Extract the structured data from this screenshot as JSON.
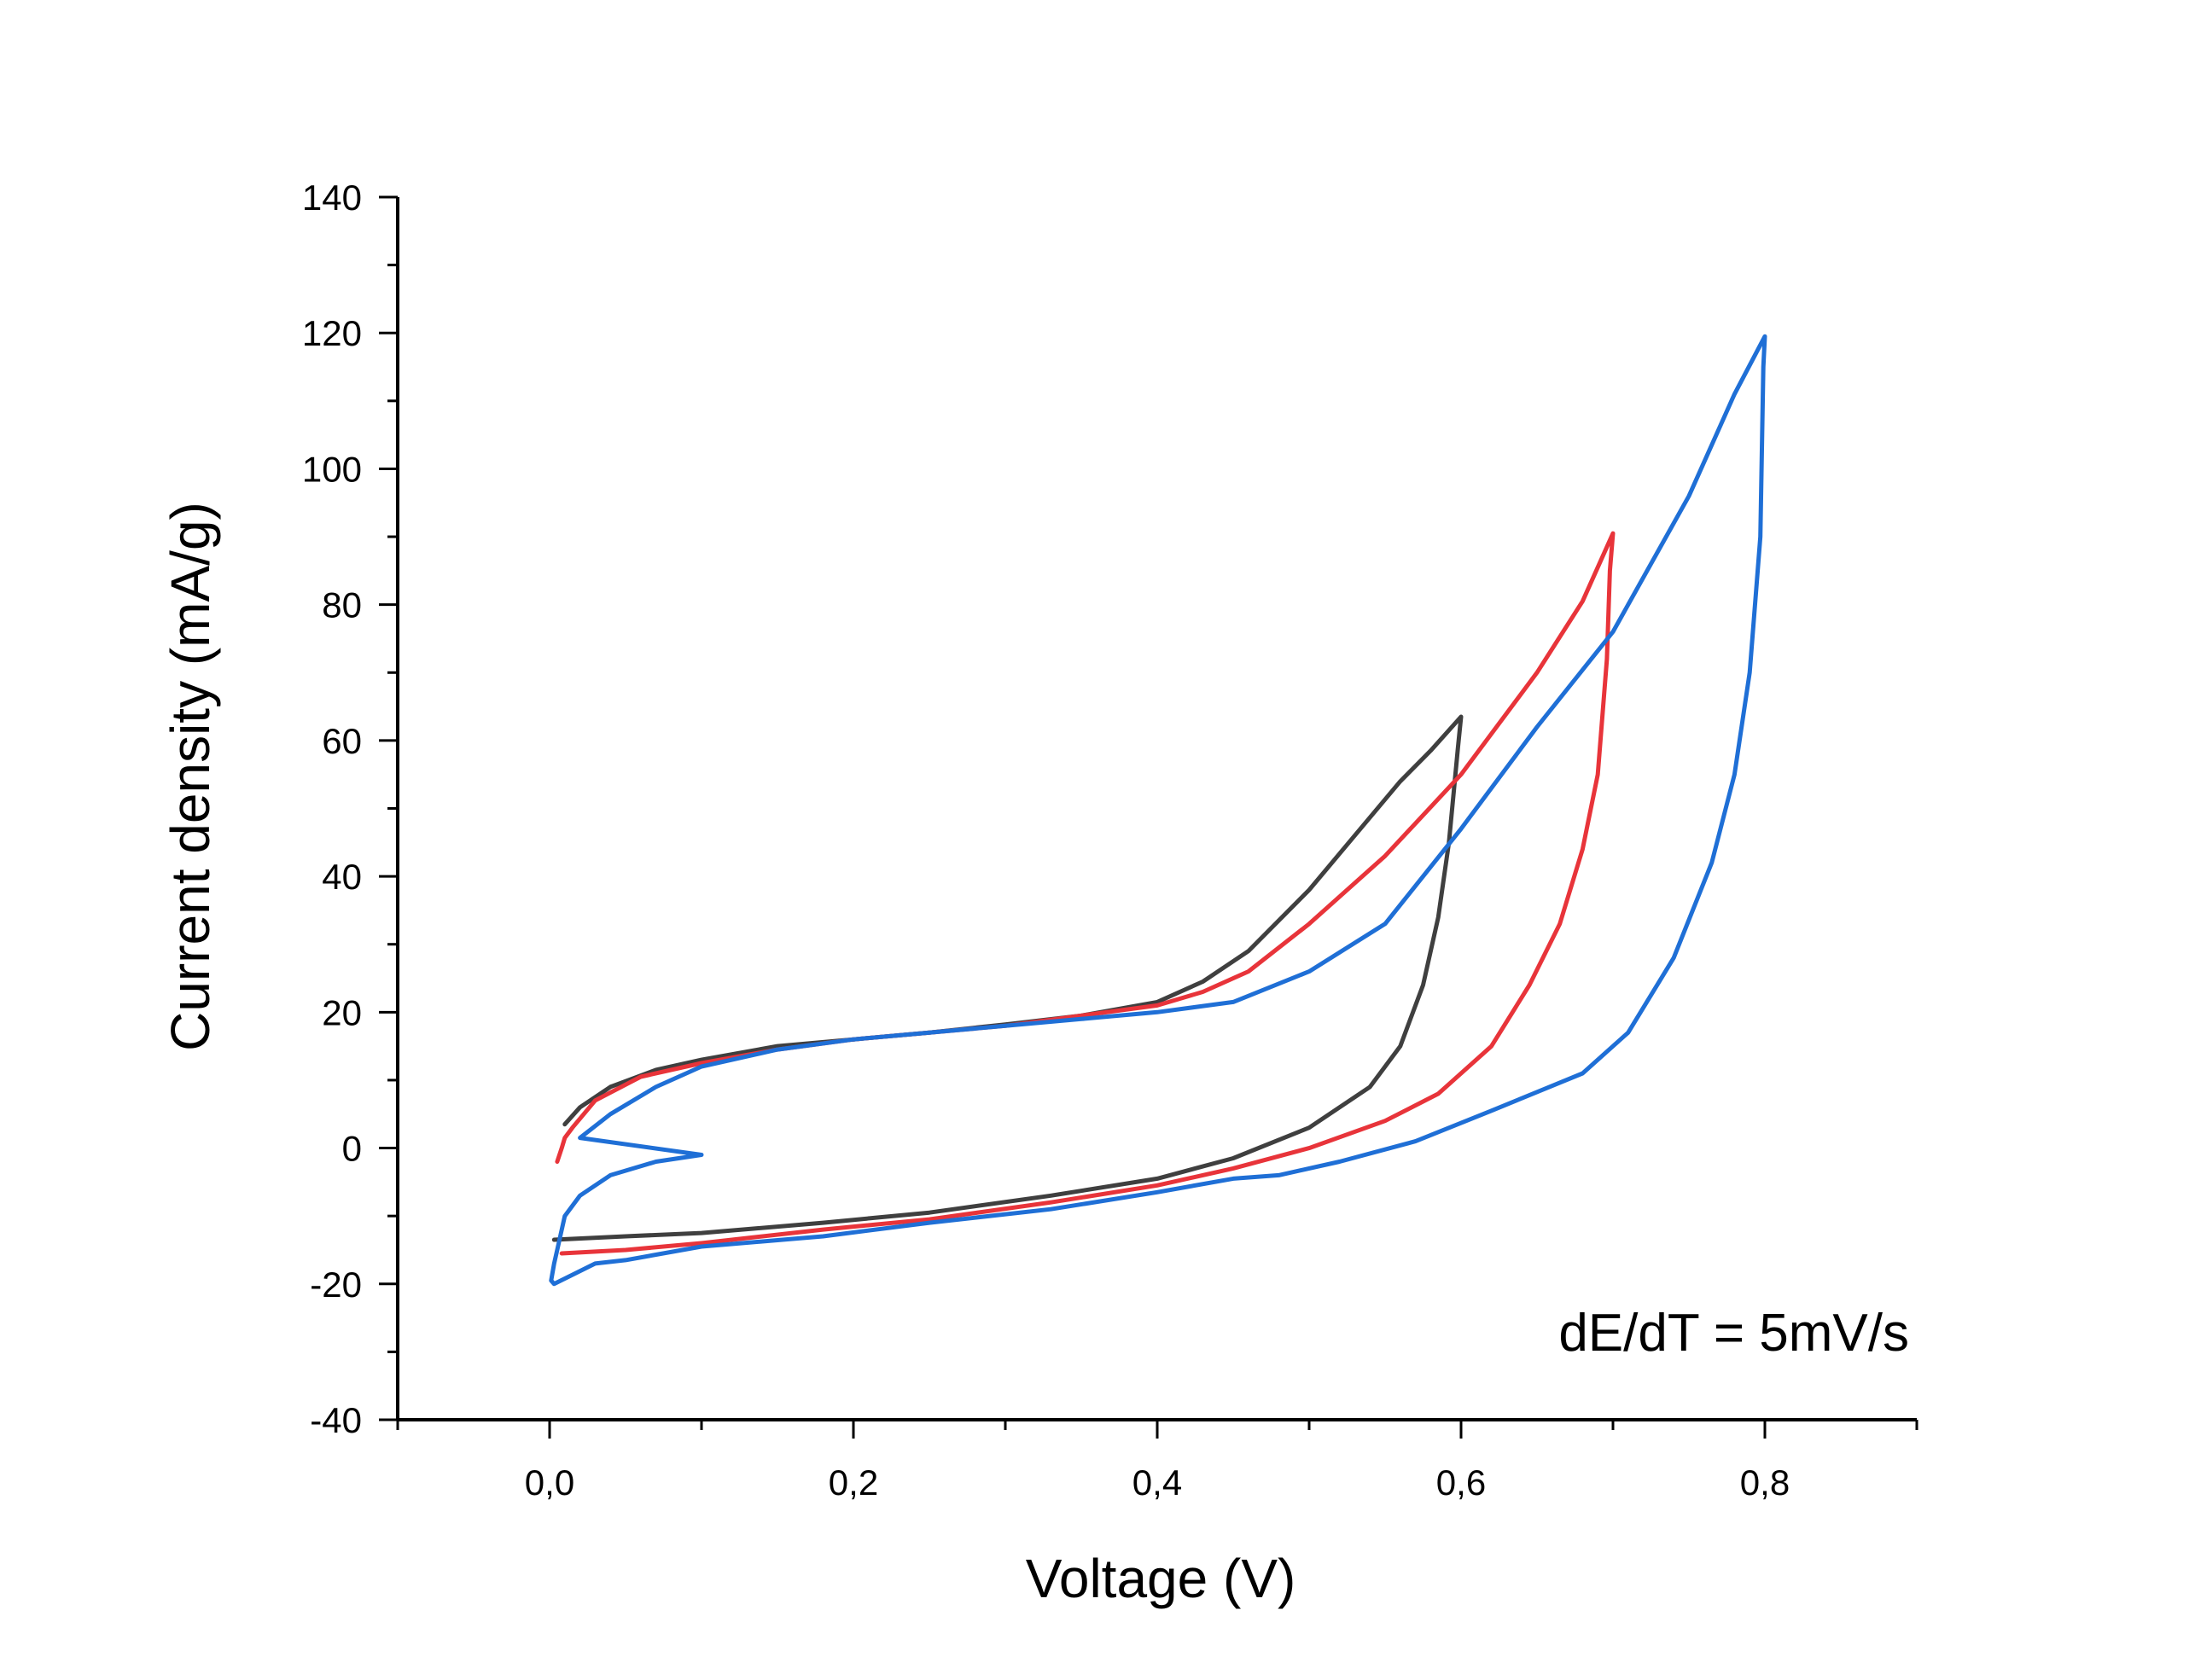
{
  "chart_data": {
    "type": "line",
    "title": "",
    "xlabel": "Voltage (V)",
    "ylabel": "Current density (mA/g)",
    "xlim": [
      -0.1,
      0.9
    ],
    "ylim": [
      -40,
      140
    ],
    "x_ticks": [
      0.0,
      0.2,
      0.4,
      0.6,
      0.8
    ],
    "x_tick_labels": [
      "0,0",
      "0,2",
      "0,4",
      "0,6",
      "0,8"
    ],
    "y_ticks": [
      -40,
      -20,
      0,
      20,
      40,
      60,
      80,
      100,
      120,
      140
    ],
    "y_tick_labels": [
      "-40",
      "-20",
      "0",
      "20",
      "40",
      "60",
      "80",
      "100",
      "120",
      "140"
    ],
    "grid": false,
    "legend": "none",
    "annotation": "dE/dT = 5mV/s",
    "series": [
      {
        "color": "#3f3f3f",
        "points": [
          [
            0.01,
            3.5
          ],
          [
            0.02,
            6
          ],
          [
            0.04,
            9
          ],
          [
            0.07,
            11.5
          ],
          [
            0.1,
            13
          ],
          [
            0.15,
            15
          ],
          [
            0.2,
            16
          ],
          [
            0.25,
            17
          ],
          [
            0.3,
            18.2
          ],
          [
            0.35,
            19.5
          ],
          [
            0.4,
            21.5
          ],
          [
            0.43,
            24.5
          ],
          [
            0.46,
            29
          ],
          [
            0.5,
            38
          ],
          [
            0.53,
            46
          ],
          [
            0.56,
            54
          ],
          [
            0.58,
            58.5
          ],
          [
            0.6,
            63.5
          ],
          [
            0.598,
            59
          ],
          [
            0.592,
            45
          ],
          [
            0.585,
            34
          ],
          [
            0.575,
            24
          ],
          [
            0.56,
            15
          ],
          [
            0.54,
            9
          ],
          [
            0.5,
            3
          ],
          [
            0.45,
            -1.5
          ],
          [
            0.4,
            -4.5
          ],
          [
            0.33,
            -7
          ],
          [
            0.25,
            -9.5
          ],
          [
            0.18,
            -11
          ],
          [
            0.1,
            -12.5
          ],
          [
            0.05,
            -13
          ],
          [
            0.003,
            -13.5
          ]
        ]
      },
      {
        "color": "#e8343a",
        "points": [
          [
            0.005,
            -2
          ],
          [
            0.008,
            0
          ],
          [
            0.01,
            1.5
          ],
          [
            0.015,
            3
          ],
          [
            0.03,
            7
          ],
          [
            0.06,
            10.5
          ],
          [
            0.1,
            12.5
          ],
          [
            0.15,
            14.5
          ],
          [
            0.2,
            16
          ],
          [
            0.25,
            17
          ],
          [
            0.3,
            18
          ],
          [
            0.35,
            19.5
          ],
          [
            0.4,
            21
          ],
          [
            0.43,
            23
          ],
          [
            0.46,
            26
          ],
          [
            0.5,
            33
          ],
          [
            0.55,
            43
          ],
          [
            0.6,
            55
          ],
          [
            0.65,
            70
          ],
          [
            0.68,
            80.5
          ],
          [
            0.7,
            90.5
          ],
          [
            0.698,
            85
          ],
          [
            0.696,
            72
          ],
          [
            0.69,
            55
          ],
          [
            0.68,
            44
          ],
          [
            0.665,
            33
          ],
          [
            0.645,
            24
          ],
          [
            0.62,
            15
          ],
          [
            0.585,
            8
          ],
          [
            0.55,
            4
          ],
          [
            0.5,
            0
          ],
          [
            0.45,
            -3
          ],
          [
            0.4,
            -5.5
          ],
          [
            0.33,
            -8
          ],
          [
            0.25,
            -10.5
          ],
          [
            0.18,
            -12
          ],
          [
            0.1,
            -14
          ],
          [
            0.05,
            -15
          ],
          [
            0.008,
            -15.5
          ]
        ]
      },
      {
        "color": "#1f6fd6",
        "points": [
          [
            0.003,
            -20
          ],
          [
            0.001,
            -19.5
          ],
          [
            0.003,
            -17
          ],
          [
            0.006,
            -14
          ],
          [
            0.01,
            -10
          ],
          [
            0.02,
            -7
          ],
          [
            0.04,
            -4
          ],
          [
            0.07,
            -2
          ],
          [
            0.1,
            -1
          ],
          [
            0.02,
            1.5
          ],
          [
            0.04,
            5
          ],
          [
            0.07,
            9
          ],
          [
            0.1,
            12
          ],
          [
            0.15,
            14.5
          ],
          [
            0.2,
            16
          ],
          [
            0.25,
            17
          ],
          [
            0.3,
            18
          ],
          [
            0.35,
            19
          ],
          [
            0.4,
            20
          ],
          [
            0.45,
            21.5
          ],
          [
            0.5,
            26
          ],
          [
            0.55,
            33
          ],
          [
            0.6,
            47
          ],
          [
            0.65,
            62
          ],
          [
            0.7,
            76
          ],
          [
            0.75,
            96
          ],
          [
            0.78,
            111
          ],
          [
            0.8,
            119.5
          ],
          [
            0.799,
            115
          ],
          [
            0.797,
            90
          ],
          [
            0.79,
            70
          ],
          [
            0.78,
            55
          ],
          [
            0.765,
            42
          ],
          [
            0.74,
            28
          ],
          [
            0.71,
            17
          ],
          [
            0.68,
            11
          ],
          [
            0.62,
            5.5
          ],
          [
            0.57,
            1
          ],
          [
            0.52,
            -2
          ],
          [
            0.48,
            -4
          ],
          [
            0.45,
            -4.5
          ],
          [
            0.4,
            -6.5
          ],
          [
            0.33,
            -9
          ],
          [
            0.25,
            -11
          ],
          [
            0.18,
            -13
          ],
          [
            0.1,
            -14.5
          ],
          [
            0.05,
            -16.5
          ],
          [
            0.03,
            -17
          ],
          [
            0.003,
            -20
          ]
        ]
      }
    ]
  }
}
